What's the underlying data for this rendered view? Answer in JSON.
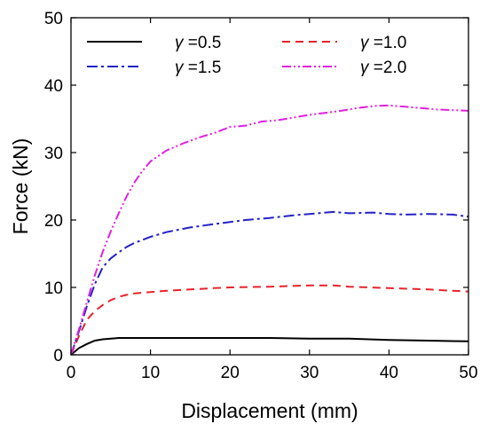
{
  "chart_data": {
    "type": "line",
    "title": "",
    "xlabel": "Displacement (mm)",
    "ylabel": "Force (kN)",
    "xlim": [
      0,
      50
    ],
    "ylim": [
      0,
      50
    ],
    "xticks": [
      "0",
      "10",
      "20",
      "30",
      "40",
      "50"
    ],
    "yticks": [
      "0",
      "10",
      "20",
      "30",
      "40",
      "50"
    ],
    "grid": false,
    "legend_placement": "top",
    "legend_symbol": "γ",
    "series": [
      {
        "name": "=0.5",
        "color": "#000000",
        "dash": "solid",
        "x": [
          0,
          1,
          2,
          3,
          4,
          5,
          6,
          8,
          10,
          15,
          20,
          25,
          30,
          35,
          40,
          45,
          50
        ],
        "y": [
          0,
          1.0,
          1.6,
          2.1,
          2.3,
          2.4,
          2.5,
          2.5,
          2.5,
          2.5,
          2.5,
          2.5,
          2.4,
          2.4,
          2.2,
          2.1,
          2.0
        ]
      },
      {
        "name": "=1.0",
        "color": "#e8222a",
        "dash": "dash",
        "x": [
          0,
          1,
          2,
          3,
          4,
          5,
          6,
          7,
          8,
          10,
          12,
          15,
          18,
          20,
          25,
          30,
          33,
          35,
          40,
          45,
          48,
          50
        ],
        "y": [
          0,
          2.8,
          5.2,
          6.5,
          7.4,
          8.1,
          8.6,
          8.9,
          9.1,
          9.3,
          9.5,
          9.7,
          9.9,
          10.0,
          10.1,
          10.3,
          10.3,
          10.1,
          9.9,
          9.7,
          9.5,
          9.4
        ]
      },
      {
        "name": "=1.5",
        "color": "#2222c8",
        "dash": "dashdot",
        "x": [
          0,
          1,
          2,
          3,
          4,
          5,
          6,
          7,
          8,
          10,
          12,
          15,
          18,
          20,
          22,
          25,
          28,
          30,
          33,
          35,
          38,
          40,
          42,
          45,
          48,
          50
        ],
        "y": [
          0,
          3.5,
          7.2,
          10.5,
          13.0,
          14.3,
          15.2,
          16.0,
          16.6,
          17.5,
          18.2,
          18.9,
          19.4,
          19.7,
          20.0,
          20.3,
          20.7,
          20.9,
          21.2,
          21.0,
          21.1,
          20.9,
          20.8,
          20.9,
          20.8,
          20.5
        ]
      },
      {
        "name": "=2.0",
        "color": "#e020e0",
        "dash": "dashdotdot",
        "x": [
          0,
          1,
          2,
          3,
          4,
          5,
          6,
          7,
          8,
          9,
          10,
          12,
          14,
          16,
          18,
          20,
          22,
          24,
          26,
          28,
          30,
          32,
          34,
          36,
          38,
          40,
          42,
          44,
          46,
          48,
          50
        ],
        "y": [
          0,
          3.8,
          7.8,
          11.8,
          15.3,
          18.3,
          21.0,
          23.5,
          25.6,
          27.3,
          28.7,
          30.3,
          31.3,
          32.2,
          32.9,
          33.8,
          34.0,
          34.6,
          34.8,
          35.2,
          35.6,
          35.9,
          36.2,
          36.6,
          36.9,
          37.0,
          36.8,
          36.6,
          36.4,
          36.3,
          36.2
        ]
      }
    ]
  }
}
